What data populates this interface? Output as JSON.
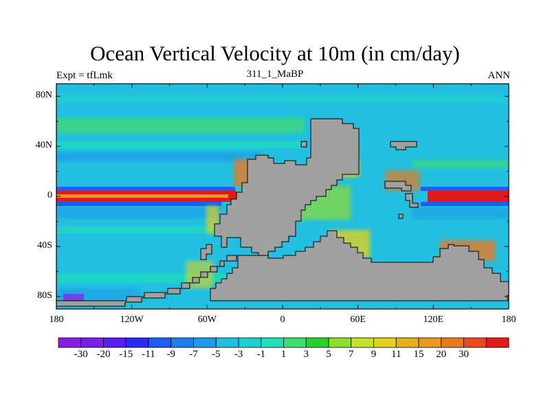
{
  "title": "Ocean Vertical Velocity at 10m (in cm/day)",
  "subtitle_left": "Expt = tfLmk",
  "subtitle_center": "311_1_MaBP",
  "subtitle_right": "ANN",
  "map_data": {
    "type": "heatmap",
    "lon_range": [
      -180,
      180
    ],
    "lat_range": [
      -90,
      90
    ],
    "x_tick_labels": [
      "180",
      "120W",
      "60W",
      "0",
      "60E",
      "120E",
      "180"
    ],
    "x_tick_values": [
      -180,
      -120,
      -60,
      0,
      60,
      120,
      180
    ],
    "y_tick_labels": [
      "80N",
      "40N",
      "0",
      "40S",
      "80S"
    ],
    "y_tick_values": [
      80,
      40,
      0,
      -40,
      -80
    ],
    "land_color": "#a0a0a0",
    "background_color": "#22bfe0"
  },
  "colorbar": {
    "colors": [
      "#8a1ee0",
      "#7a1ee8",
      "#5a1cf0",
      "#2c2cf0",
      "#1f5cf0",
      "#1c80e8",
      "#1e9ae8",
      "#22bfe0",
      "#1fd0d0",
      "#1fe0b8",
      "#3fdc70",
      "#2ad02a",
      "#8edc2c",
      "#c8e02c",
      "#e0d21f",
      "#e4b01c",
      "#e89a1e",
      "#e87a1e",
      "#ea4a1c",
      "#e01a1a"
    ],
    "labels": [
      "-30",
      "-20",
      "-15",
      "-11",
      "-9",
      "-7",
      "-5",
      "-3",
      "-1",
      "1",
      "3",
      "5",
      "7",
      "9",
      "11",
      "15",
      "20",
      "30"
    ]
  }
}
